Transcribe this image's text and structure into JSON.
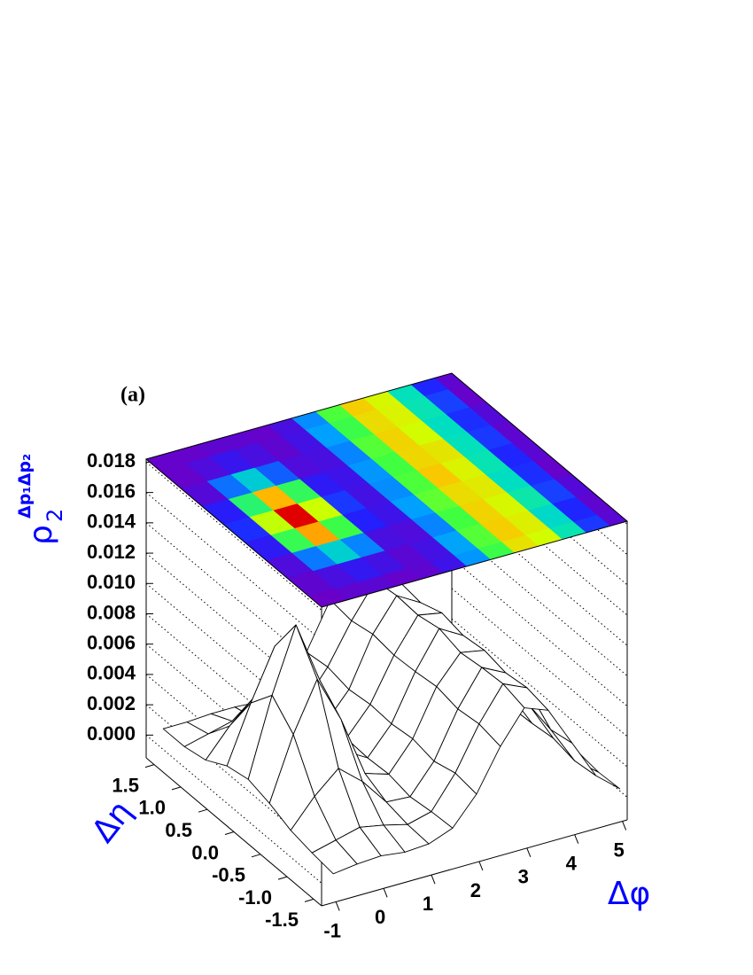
{
  "chart_data": {
    "type": "surface",
    "annotation": "(a)",
    "x_label": "Δφ",
    "y_label": "Δη",
    "z_label": {
      "symbol": "ρ",
      "sub": "2",
      "sup": "Δp₁Δp₂"
    },
    "x": [
      -1,
      -0.5,
      0,
      0.5,
      1,
      1.5,
      2,
      2.5,
      3,
      3.5,
      4,
      4.5,
      5
    ],
    "y": [
      -1.6,
      -1.2,
      -0.8,
      -0.4,
      0,
      0.4,
      0.8,
      1.2,
      1.6
    ],
    "values": [
      [
        0.0002,
        0.0004,
        0.0005,
        0.0003,
        0.0004,
        0.001,
        0.0028,
        0.0055,
        0.0076,
        0.007,
        0.0044,
        0.0018,
        0.0005
      ],
      [
        0.0004,
        0.0008,
        0.0012,
        0.0009,
        0.0005,
        0.0009,
        0.003,
        0.0058,
        0.008,
        0.0073,
        0.0041,
        0.0016,
        0.0004
      ],
      [
        0.0007,
        0.0025,
        0.0039,
        0.0026,
        0.0008,
        0.0007,
        0.0026,
        0.0056,
        0.0079,
        0.0071,
        0.0045,
        0.0019,
        0.0006
      ],
      [
        0.0013,
        0.0054,
        0.0086,
        0.0055,
        0.0015,
        0.001,
        0.0029,
        0.0059,
        0.0077,
        0.0074,
        0.0042,
        0.0017,
        0.0003
      ],
      [
        0.0017,
        0.0068,
        0.011,
        0.0069,
        0.0018,
        0.0009,
        0.0027,
        0.0057,
        0.0081,
        0.0072,
        0.0044,
        0.0016,
        0.0005
      ],
      [
        0.0014,
        0.0051,
        0.0084,
        0.0053,
        0.0013,
        0.001,
        0.0028,
        0.0056,
        0.0078,
        0.0075,
        0.0043,
        0.0018,
        0.0004
      ],
      [
        0.0006,
        0.0024,
        0.0038,
        0.0022,
        0.0007,
        0.0008,
        0.0026,
        0.0058,
        0.0079,
        0.007,
        0.0042,
        0.0017,
        0.0006
      ],
      [
        0.0003,
        0.0007,
        0.0011,
        0.0008,
        0.0004,
        0.0009,
        0.0029,
        0.0055,
        0.0077,
        0.0072,
        0.0044,
        0.0019,
        0.0003
      ],
      [
        0.0003,
        0.0003,
        0.0004,
        0.0004,
        0.0003,
        0.0008,
        0.0027,
        0.0057,
        0.008,
        0.0071,
        0.0043,
        0.0016,
        0.0004
      ]
    ],
    "xlim": [
      -1.3,
      5.1
    ],
    "ylim": [
      -1.65,
      1.65
    ],
    "zlim": [
      -0.0015,
      0.0182
    ],
    "xticks": [
      -1,
      0,
      1,
      2,
      3,
      4,
      5
    ],
    "yticks": [
      -1.5,
      {
        "value": -1.0,
        "label": "-1.0"
      },
      -0.5,
      {
        "value": 0,
        "label": "0.0"
      },
      0.5,
      {
        "value": 1.0,
        "label": "1.0"
      },
      1.5
    ],
    "zticks": [
      {
        "value": 0,
        "label": "0.000"
      },
      0.002,
      0.004,
      0.006,
      0.008,
      {
        "value": 0.01,
        "label": "0.010"
      },
      0.012,
      0.014,
      0.016,
      0.018
    ],
    "surface_color": "#ffffff",
    "mesh_color": "#000000",
    "palette": [
      "#6a00c8",
      "#2020ff",
      "#00a0ff",
      "#00e0c0",
      "#40ff40",
      "#d0ff00",
      "#ffc000",
      "#ff4000",
      "#e00000"
    ],
    "grid": true
  }
}
